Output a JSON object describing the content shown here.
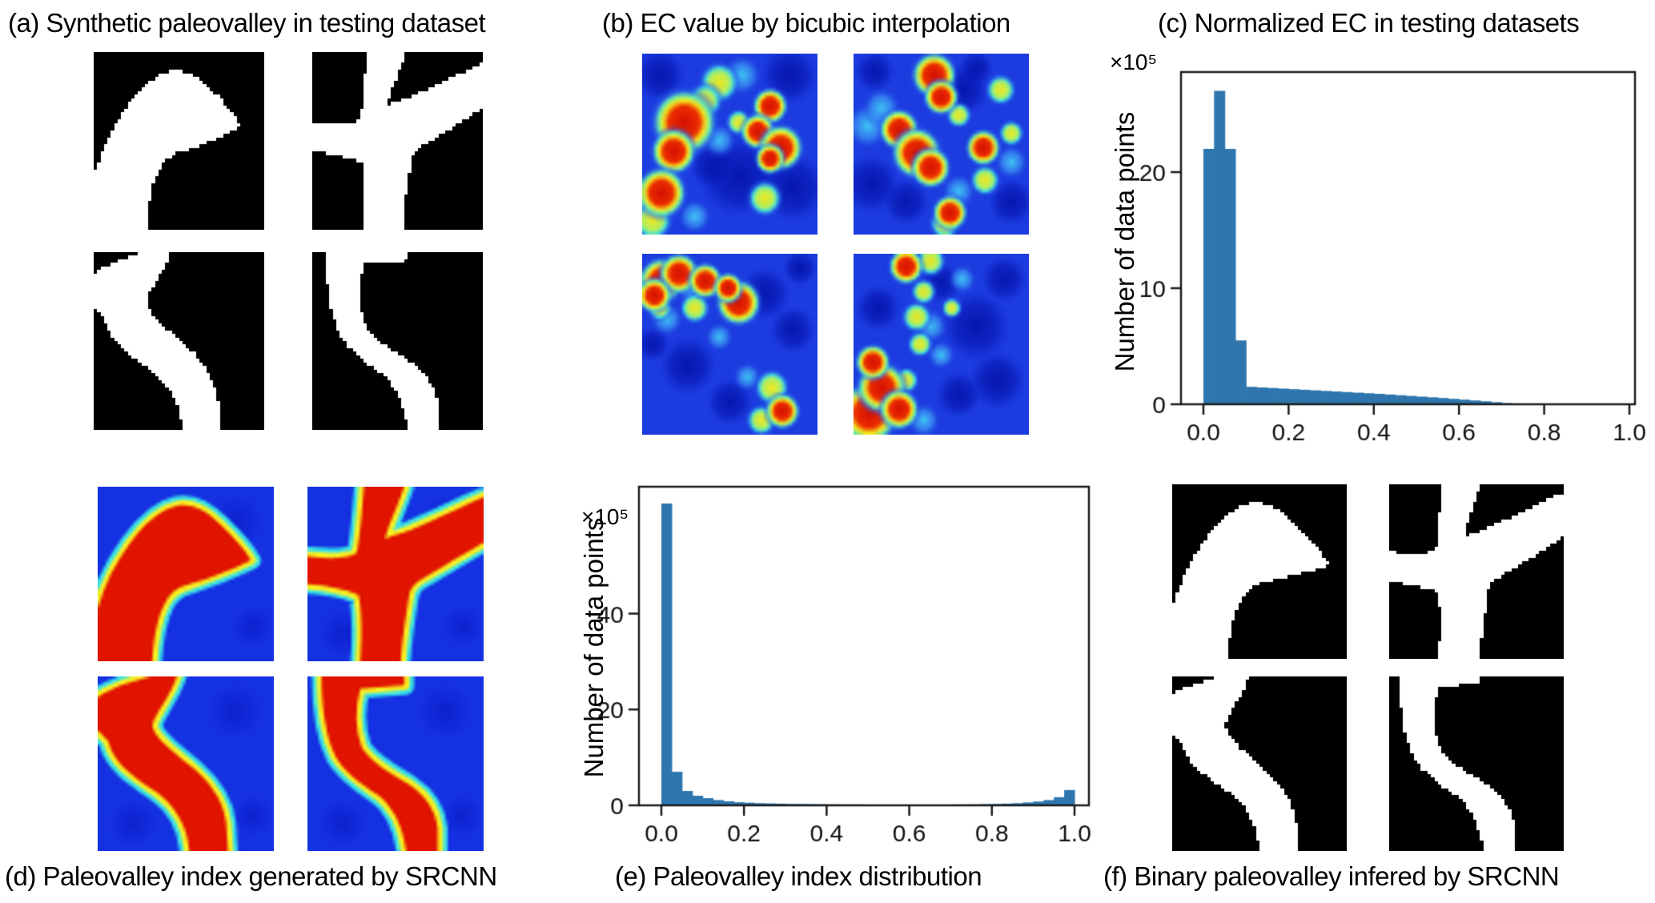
{
  "figure": {
    "background": "#ffffff"
  },
  "panels": {
    "a": {
      "caption": "(a) Synthetic paleovalley in testing dataset",
      "type": "binary",
      "colors": {
        "bg": "#000000",
        "fg": "#ffffff"
      },
      "shapes": [
        "M0,70 C4,56 10,44 18,33 C26,22 35,13 45,11 C54,9 62,14 70,22 C77,29 83,35 87,42 C77,47 64,52 52,56 C45,58 41,61 38,67 C34,75 32,85 31,100 L0,100 Z",
        "M32,0 L55,0 C51,12 46,22 44,30 C46,29 52,27 58,25 C70,20 83,14 93,9 L100,6 L100,32 C90,38 78,45 68,51 C62,54 59,57 58,61 C56,73 54,86 53,100 L30,100 C31,86 31,72 29,62 C22,59 12,57 0,56 L0,40 C10,41 21,42 28,38 C30,28 31,13 32,0 Z",
        "M30,0 L45,0 C41,12 34,19 31,28 C33,37 46,45 56,54 C66,63 72,74 73,84 L74,100 L52,100 C51,86 44,74 33,66 C20,57 9,50 6,37 L0,31 L0,12 C8,6 20,3 30,0 Z",
        "M8,0 L55,0 L55,5 L30,7 C27,18 27,30 31,41 C37,50 48,56 58,62 C67,68 73,77 74,87 L74,100 L56,100 C54,85 48,74 40,68 C30,61 21,55 16,46 C11,36 8,20 8,0 Z"
      ]
    },
    "b": {
      "caption": "(b) EC value by bicubic interpolation",
      "type": "heatmap-blobs",
      "colors": {
        "bg": "#1c3cdf"
      },
      "images": [
        [
          [
            55,
            68,
            14,
            "d"
          ],
          [
            86,
            74,
            12,
            "d"
          ],
          [
            84,
            12,
            10,
            "d"
          ],
          [
            10,
            12,
            9,
            "d"
          ],
          [
            40,
            62,
            8,
            "d"
          ],
          [
            57,
            12,
            7,
            "c"
          ],
          [
            30,
            90,
            6,
            "c"
          ],
          [
            44,
            48,
            6,
            "c"
          ],
          [
            44,
            16,
            8,
            "y"
          ],
          [
            36,
            26,
            7,
            "y"
          ],
          [
            70,
            80,
            7,
            "y"
          ],
          [
            6,
            92,
            8,
            "y"
          ],
          [
            55,
            38,
            5,
            "y"
          ],
          [
            24,
            38,
            13,
            "r"
          ],
          [
            18,
            54,
            9,
            "r"
          ],
          [
            11,
            77,
            10,
            "r"
          ],
          [
            73,
            29,
            7,
            "r"
          ],
          [
            66,
            43,
            7,
            "r"
          ],
          [
            79,
            52,
            9,
            "r"
          ],
          [
            73,
            58,
            6,
            "r"
          ]
        ],
        [
          [
            63,
            20,
            9,
            "d"
          ],
          [
            10,
            72,
            10,
            "d"
          ],
          [
            30,
            82,
            8,
            "d"
          ],
          [
            90,
            82,
            8,
            "d"
          ],
          [
            12,
            10,
            7,
            "d"
          ],
          [
            70,
            8,
            6,
            "d"
          ],
          [
            8,
            40,
            8,
            "c"
          ],
          [
            16,
            30,
            7,
            "c"
          ],
          [
            60,
            76,
            6,
            "c"
          ],
          [
            90,
            60,
            6,
            "c"
          ],
          [
            84,
            20,
            6,
            "y"
          ],
          [
            60,
            34,
            5,
            "y"
          ],
          [
            75,
            70,
            6,
            "y"
          ],
          [
            90,
            44,
            5,
            "y"
          ],
          [
            52,
            94,
            6,
            "y"
          ],
          [
            46,
            12,
            9,
            "r"
          ],
          [
            50,
            24,
            7,
            "r"
          ],
          [
            26,
            42,
            8,
            "r"
          ],
          [
            36,
            55,
            10,
            "r"
          ],
          [
            44,
            63,
            8,
            "r"
          ],
          [
            74,
            52,
            7,
            "r"
          ],
          [
            55,
            88,
            7,
            "r"
          ]
        ],
        [
          [
            70,
            22,
            9,
            "d"
          ],
          [
            86,
            42,
            8,
            "d"
          ],
          [
            26,
            62,
            10,
            "d"
          ],
          [
            50,
            82,
            8,
            "d"
          ],
          [
            90,
            8,
            6,
            "d"
          ],
          [
            6,
            50,
            6,
            "d"
          ],
          [
            14,
            36,
            6,
            "c"
          ],
          [
            44,
            46,
            5,
            "c"
          ],
          [
            60,
            68,
            5,
            "c"
          ],
          [
            28,
            20,
            5,
            "c"
          ],
          [
            30,
            30,
            6,
            "y"
          ],
          [
            74,
            74,
            7,
            "y"
          ],
          [
            68,
            92,
            6,
            "y"
          ],
          [
            10,
            30,
            5,
            "y"
          ],
          [
            11,
            15,
            9,
            "r"
          ],
          [
            21,
            11,
            8,
            "r"
          ],
          [
            7,
            23,
            7,
            "r"
          ],
          [
            36,
            15,
            7,
            "r"
          ],
          [
            55,
            27,
            9,
            "r"
          ],
          [
            49,
            19,
            6,
            "r"
          ],
          [
            80,
            87,
            7,
            "r"
          ]
        ],
        [
          [
            70,
            40,
            12,
            "d"
          ],
          [
            82,
            70,
            10,
            "d"
          ],
          [
            14,
            30,
            8,
            "d"
          ],
          [
            60,
            78,
            8,
            "d"
          ],
          [
            86,
            14,
            8,
            "d"
          ],
          [
            50,
            16,
            7,
            "d"
          ],
          [
            44,
            40,
            6,
            "c"
          ],
          [
            50,
            56,
            5,
            "c"
          ],
          [
            62,
            14,
            5,
            "c"
          ],
          [
            40,
            92,
            6,
            "c"
          ],
          [
            44,
            4,
            6,
            "y"
          ],
          [
            40,
            21,
            5,
            "y"
          ],
          [
            36,
            35,
            6,
            "y"
          ],
          [
            38,
            50,
            5,
            "y"
          ],
          [
            56,
            30,
            4,
            "y"
          ],
          [
            30,
            70,
            5,
            "y"
          ],
          [
            9,
            88,
            12,
            "r"
          ],
          [
            16,
            74,
            10,
            "r"
          ],
          [
            26,
            86,
            8,
            "r"
          ],
          [
            11,
            60,
            7,
            "r"
          ],
          [
            30,
            7,
            7,
            "r"
          ]
        ]
      ]
    },
    "d": {
      "caption": "(d) Paleovalley index generated by SRCNN",
      "type": "channel-heatmap",
      "colors": {
        "bg": "#1532e2",
        "core": "#e11400",
        "ring": "#f8ef22",
        "halo": "#3ae3e8"
      },
      "shapes": [
        "M0,70 C4,56 10,44 18,33 C26,22 35,13 45,11 C54,9 62,14 70,22 C77,29 83,35 87,42 C77,47 64,52 52,56 C45,58 41,61 38,67 C34,75 32,85 31,100 L0,100 Z",
        "M32,0 L55,0 C51,12 46,22 44,30 C46,29 52,27 58,25 C70,20 83,14 93,9 L100,6 L100,32 C90,38 78,45 68,51 C62,54 59,57 58,61 C56,73 54,86 53,100 L30,100 C31,86 31,72 29,62 C22,59 12,57 0,56 L0,40 C10,41 21,42 28,38 C30,28 31,13 32,0 Z",
        "M30,0 L45,0 C41,12 34,19 31,28 C33,37 46,45 56,54 C66,63 72,74 73,84 L74,100 L52,100 C51,86 44,74 33,66 C20,57 9,50 6,37 L0,31 L0,12 C8,6 20,3 30,0 Z",
        "M8,0 L55,0 L55,5 L30,7 C27,18 27,30 31,41 C37,50 48,56 58,62 C67,68 73,77 74,87 L74,100 L56,100 C54,85 48,74 40,68 C30,61 21,55 16,46 C11,36 8,20 8,0 Z"
      ]
    },
    "f": {
      "caption": "(f) Binary paleovalley infered by SRCNN",
      "type": "binary",
      "colors": {
        "bg": "#000000",
        "fg": "#ffffff"
      },
      "shapes": [
        "M0,72 C4,57 10,44 18,33 C26,22 35,13 45,11 C54,9 63,15 71,23 C78,30 85,38 90,46 C79,50 66,53 54,56 C46,58 42,61 39,67 C35,75 33,85 32,100 L0,100 Z",
        "M30,0 L52,0 C49,12 45,22 43,30 C46,29 52,27 58,24 C70,19 82,13 92,8 L100,5 L100,30 C90,37 78,44 68,50 C62,53 58,56 57,60 C55,72 53,86 52,100 L28,100 C30,86 30,72 28,62 C21,59 11,57 0,56 L0,38 C10,40 20,41 27,37 C29,27 29,13 30,0 Z",
        "M28,0 L44,0 C40,12 33,19 30,28 C32,37 45,46 55,55 C65,64 70,74 71,84 L71,100 L50,100 C49,86 43,74 32,66 C19,57 8,50 5,37 L0,32 L0,10 C8,5 18,3 28,0 Z",
        "M6,0 L52,0 L52,4 L28,6 C25,18 25,30 29,41 C35,50 46,56 56,62 C65,68 71,77 72,87 L72,100 L54,100 C52,85 46,74 38,68 C28,61 19,55 14,46 C9,36 6,20 6,0 Z"
      ]
    }
  },
  "chart_data": [
    {
      "id": "c",
      "type": "bar",
      "title": "(c) Normalized EC in testing datasets",
      "xlabel": "",
      "ylabel": "Number of data points",
      "scale_label": "×10⁵",
      "bar_color": "#2e76ad",
      "frame_color": "#1a1a1a",
      "bin_start": 0.0,
      "bin_width": 0.025,
      "values": [
        22,
        27,
        22,
        5.5,
        1.5,
        1.45,
        1.4,
        1.35,
        1.3,
        1.25,
        1.2,
        1.15,
        1.1,
        1.05,
        1.0,
        0.95,
        0.9,
        0.84,
        0.78,
        0.72,
        0.66,
        0.6,
        0.54,
        0.47,
        0.4,
        0.33,
        0.26,
        0.18,
        0.1,
        0.03,
        0,
        0,
        0,
        0,
        0,
        0,
        0,
        0,
        0,
        0
      ],
      "xticks": [
        0.0,
        0.2,
        0.4,
        0.6,
        0.8,
        1.0
      ],
      "xtick_labels": [
        "0.0",
        "0.2",
        "0.4",
        "0.6",
        "0.8",
        "1.0"
      ],
      "yticks": [
        0,
        10,
        20
      ],
      "ylim": [
        0,
        28
      ],
      "grid": false,
      "legend": null
    },
    {
      "id": "e",
      "type": "bar",
      "title": "(e) Paleovalley index distribution",
      "xlabel": "",
      "ylabel": "Number of data points",
      "scale_label": "×10⁵",
      "bar_color": "#2e76ad",
      "frame_color": "#1a1a1a",
      "bin_start": 0.0,
      "bin_width": 0.025,
      "values": [
        63,
        7,
        3,
        2,
        1.5,
        1.1,
        0.85,
        0.65,
        0.55,
        0.45,
        0.4,
        0.35,
        0.3,
        0.28,
        0.26,
        0.24,
        0.22,
        0.2,
        0.19,
        0.18,
        0.17,
        0.16,
        0.16,
        0.15,
        0.15,
        0.15,
        0.16,
        0.17,
        0.18,
        0.2,
        0.22,
        0.26,
        0.3,
        0.36,
        0.45,
        0.6,
        0.8,
        1.1,
        1.7,
        3.2
      ],
      "xticks": [
        0.0,
        0.2,
        0.4,
        0.6,
        0.8,
        1.0
      ],
      "xtick_labels": [
        "0.0",
        "0.2",
        "0.4",
        "0.6",
        "0.8",
        "1.0"
      ],
      "yticks": [
        0,
        20,
        40
      ],
      "ylim": [
        0,
        65
      ],
      "grid": false,
      "legend": null
    }
  ]
}
